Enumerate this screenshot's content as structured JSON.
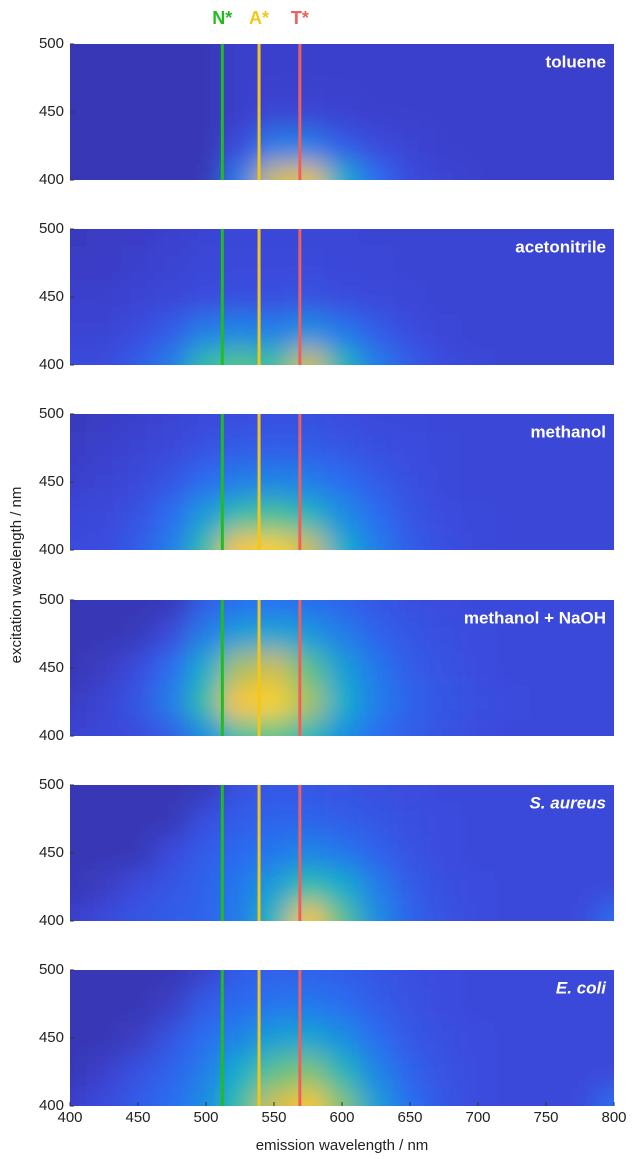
{
  "figure": {
    "ylabel": "excitation wavelength / nm",
    "markers": [
      {
        "label": "N*",
        "x": 512,
        "color": "#22bb22"
      },
      {
        "label": "A*",
        "x": 539,
        "color": "#f5c518"
      },
      {
        "label": "T*",
        "x": 569,
        "color": "#f0605a"
      }
    ]
  },
  "chart_data": [
    {
      "type": "heatmap",
      "title": "toluene",
      "title_italic": false,
      "colormap": "parula",
      "xlim": [
        400,
        800
      ],
      "ylim": [
        400,
        500
      ],
      "yticks": [
        400,
        450,
        500
      ],
      "x": [
        400,
        425,
        450,
        475,
        500,
        525,
        550,
        575,
        600,
        625,
        650,
        675,
        700,
        725,
        750,
        775,
        800
      ],
      "y": [
        400,
        425,
        450,
        475,
        500
      ],
      "z": [
        [
          0.05,
          0.05,
          0.05,
          0.05,
          0.05,
          0.3,
          0.75,
          0.8,
          0.45,
          0.25,
          0.15,
          0.12,
          0.1,
          0.1,
          0.1,
          0.1,
          0.1
        ],
        [
          0.05,
          0.05,
          0.05,
          0.05,
          0.05,
          0.15,
          0.3,
          0.3,
          0.2,
          0.15,
          0.12,
          0.1,
          0.1,
          0.1,
          0.1,
          0.1,
          0.1
        ],
        [
          0.05,
          0.05,
          0.05,
          0.05,
          0.05,
          0.1,
          0.12,
          0.12,
          0.11,
          0.1,
          0.1,
          0.1,
          0.1,
          0.1,
          0.1,
          0.1,
          0.1
        ],
        [
          0.05,
          0.05,
          0.05,
          0.05,
          0.05,
          0.1,
          0.1,
          0.1,
          0.1,
          0.1,
          0.1,
          0.1,
          0.1,
          0.1,
          0.1,
          0.1,
          0.1
        ],
        [
          0.05,
          0.05,
          0.05,
          0.05,
          0.05,
          0.1,
          0.1,
          0.1,
          0.1,
          0.1,
          0.1,
          0.1,
          0.1,
          0.1,
          0.1,
          0.1,
          0.1
        ]
      ]
    },
    {
      "type": "heatmap",
      "title": "acetonitrile",
      "title_italic": false,
      "colormap": "parula",
      "xlim": [
        400,
        800
      ],
      "ylim": [
        400,
        500
      ],
      "yticks": [
        400,
        450,
        500
      ],
      "x": [
        400,
        425,
        450,
        475,
        500,
        525,
        550,
        575,
        600,
        625,
        650,
        675,
        700,
        725,
        750,
        775,
        800
      ],
      "y": [
        400,
        425,
        450,
        475,
        500
      ],
      "z": [
        [
          0.15,
          0.15,
          0.2,
          0.3,
          0.55,
          0.6,
          0.55,
          0.75,
          0.5,
          0.3,
          0.2,
          0.15,
          0.13,
          0.12,
          0.12,
          0.12,
          0.12
        ],
        [
          0.12,
          0.12,
          0.15,
          0.2,
          0.3,
          0.32,
          0.3,
          0.35,
          0.28,
          0.2,
          0.15,
          0.13,
          0.12,
          0.12,
          0.12,
          0.12,
          0.12
        ],
        [
          0.1,
          0.1,
          0.12,
          0.13,
          0.15,
          0.16,
          0.16,
          0.17,
          0.15,
          0.14,
          0.13,
          0.12,
          0.12,
          0.12,
          0.12,
          0.12,
          0.12
        ],
        [
          0.08,
          0.09,
          0.1,
          0.12,
          0.13,
          0.14,
          0.14,
          0.14,
          0.13,
          0.13,
          0.12,
          0.12,
          0.12,
          0.12,
          0.12,
          0.12,
          0.12
        ],
        [
          0.07,
          0.08,
          0.09,
          0.1,
          0.12,
          0.13,
          0.13,
          0.13,
          0.13,
          0.12,
          0.12,
          0.12,
          0.12,
          0.12,
          0.12,
          0.12,
          0.12
        ]
      ]
    },
    {
      "type": "heatmap",
      "title": "methanol",
      "title_italic": false,
      "colormap": "parula",
      "xlim": [
        400,
        800
      ],
      "ylim": [
        400,
        500
      ],
      "yticks": [
        400,
        450,
        500
      ],
      "x": [
        400,
        425,
        450,
        475,
        500,
        525,
        550,
        575,
        600,
        625,
        650,
        675,
        700,
        725,
        750,
        775,
        800
      ],
      "y": [
        400,
        425,
        450,
        475,
        500
      ],
      "z": [
        [
          0.15,
          0.15,
          0.2,
          0.3,
          0.55,
          0.85,
          0.9,
          0.75,
          0.45,
          0.3,
          0.2,
          0.16,
          0.14,
          0.13,
          0.13,
          0.13,
          0.13
        ],
        [
          0.13,
          0.14,
          0.17,
          0.25,
          0.4,
          0.55,
          0.58,
          0.5,
          0.35,
          0.25,
          0.18,
          0.15,
          0.14,
          0.13,
          0.13,
          0.13,
          0.13
        ],
        [
          0.1,
          0.12,
          0.14,
          0.18,
          0.25,
          0.3,
          0.32,
          0.3,
          0.25,
          0.2,
          0.16,
          0.14,
          0.13,
          0.13,
          0.13,
          0.13,
          0.13
        ],
        [
          0.08,
          0.1,
          0.12,
          0.14,
          0.17,
          0.2,
          0.2,
          0.2,
          0.18,
          0.16,
          0.15,
          0.14,
          0.13,
          0.13,
          0.13,
          0.13,
          0.13
        ],
        [
          0.06,
          0.08,
          0.1,
          0.12,
          0.14,
          0.15,
          0.16,
          0.16,
          0.15,
          0.14,
          0.14,
          0.13,
          0.13,
          0.13,
          0.13,
          0.13,
          0.13
        ]
      ]
    },
    {
      "type": "heatmap",
      "title": "methanol + NaOH",
      "title_italic": false,
      "colormap": "parula",
      "xlim": [
        400,
        800
      ],
      "ylim": [
        400,
        500
      ],
      "yticks": [
        400,
        450,
        500
      ],
      "x": [
        400,
        425,
        450,
        475,
        500,
        525,
        550,
        575,
        600,
        625,
        650,
        675,
        700,
        725,
        750,
        775,
        800
      ],
      "y": [
        400,
        425,
        450,
        475,
        500
      ],
      "z": [
        [
          0.12,
          0.13,
          0.15,
          0.2,
          0.35,
          0.55,
          0.6,
          0.5,
          0.35,
          0.25,
          0.2,
          0.17,
          0.15,
          0.14,
          0.14,
          0.14,
          0.14
        ],
        [
          0.08,
          0.12,
          0.18,
          0.3,
          0.55,
          0.85,
          0.9,
          0.7,
          0.45,
          0.3,
          0.22,
          0.18,
          0.16,
          0.15,
          0.14,
          0.14,
          0.14
        ],
        [
          0.05,
          0.08,
          0.15,
          0.25,
          0.45,
          0.7,
          0.75,
          0.6,
          0.4,
          0.28,
          0.2,
          0.17,
          0.15,
          0.14,
          0.14,
          0.14,
          0.14
        ],
        [
          0.05,
          0.05,
          0.06,
          0.15,
          0.3,
          0.4,
          0.42,
          0.38,
          0.3,
          0.22,
          0.18,
          0.16,
          0.15,
          0.14,
          0.14,
          0.14,
          0.14
        ],
        [
          0.05,
          0.05,
          0.05,
          0.05,
          0.2,
          0.25,
          0.25,
          0.24,
          0.22,
          0.18,
          0.16,
          0.15,
          0.14,
          0.14,
          0.14,
          0.14,
          0.14
        ]
      ]
    },
    {
      "type": "heatmap",
      "title": "S. aureus",
      "title_italic": true,
      "colormap": "parula",
      "xlim": [
        400,
        800
      ],
      "ylim": [
        400,
        500
      ],
      "yticks": [
        400,
        450,
        500
      ],
      "x": [
        400,
        425,
        450,
        475,
        500,
        525,
        550,
        575,
        600,
        625,
        650,
        675,
        700,
        725,
        750,
        775,
        800
      ],
      "y": [
        400,
        425,
        450,
        475,
        500
      ],
      "z": [
        [
          0.1,
          0.15,
          0.18,
          0.2,
          0.22,
          0.3,
          0.5,
          0.85,
          0.6,
          0.35,
          0.22,
          0.17,
          0.15,
          0.14,
          0.14,
          0.14,
          0.25
        ],
        [
          0.05,
          0.08,
          0.15,
          0.18,
          0.22,
          0.28,
          0.4,
          0.55,
          0.45,
          0.3,
          0.2,
          0.16,
          0.15,
          0.14,
          0.14,
          0.14,
          0.14
        ],
        [
          0.05,
          0.05,
          0.05,
          0.15,
          0.2,
          0.24,
          0.28,
          0.32,
          0.28,
          0.22,
          0.17,
          0.15,
          0.14,
          0.14,
          0.14,
          0.14,
          0.14
        ],
        [
          0.05,
          0.05,
          0.05,
          0.05,
          0.16,
          0.2,
          0.22,
          0.22,
          0.2,
          0.18,
          0.16,
          0.15,
          0.14,
          0.14,
          0.14,
          0.14,
          0.14
        ],
        [
          0.05,
          0.05,
          0.05,
          0.05,
          0.05,
          0.17,
          0.18,
          0.18,
          0.17,
          0.16,
          0.15,
          0.14,
          0.14,
          0.14,
          0.14,
          0.14,
          0.14
        ]
      ]
    },
    {
      "type": "heatmap",
      "title": "E. coli",
      "title_italic": true,
      "colormap": "parula",
      "xlim": [
        400,
        800
      ],
      "ylim": [
        400,
        500
      ],
      "yticks": [
        400,
        450,
        500
      ],
      "xticks": [
        400,
        450,
        500,
        550,
        600,
        650,
        700,
        750,
        800
      ],
      "xlabel": "emission wavelength / nm",
      "x": [
        400,
        425,
        450,
        475,
        500,
        525,
        550,
        575,
        600,
        625,
        650,
        675,
        700,
        725,
        750,
        775,
        800
      ],
      "y": [
        400,
        425,
        450,
        475,
        500
      ],
      "z": [
        [
          0.1,
          0.15,
          0.2,
          0.25,
          0.35,
          0.55,
          0.75,
          0.85,
          0.65,
          0.4,
          0.25,
          0.18,
          0.15,
          0.14,
          0.14,
          0.14,
          0.25
        ],
        [
          0.05,
          0.1,
          0.17,
          0.22,
          0.3,
          0.45,
          0.6,
          0.65,
          0.5,
          0.32,
          0.22,
          0.17,
          0.15,
          0.14,
          0.14,
          0.14,
          0.14
        ],
        [
          0.05,
          0.05,
          0.08,
          0.18,
          0.25,
          0.32,
          0.4,
          0.42,
          0.35,
          0.25,
          0.19,
          0.16,
          0.15,
          0.14,
          0.14,
          0.14,
          0.14
        ],
        [
          0.05,
          0.05,
          0.05,
          0.08,
          0.2,
          0.24,
          0.27,
          0.28,
          0.25,
          0.2,
          0.17,
          0.15,
          0.14,
          0.14,
          0.14,
          0.14,
          0.14
        ],
        [
          0.05,
          0.05,
          0.05,
          0.05,
          0.1,
          0.2,
          0.21,
          0.21,
          0.2,
          0.18,
          0.16,
          0.15,
          0.14,
          0.14,
          0.14,
          0.14,
          0.14
        ]
      ]
    }
  ]
}
